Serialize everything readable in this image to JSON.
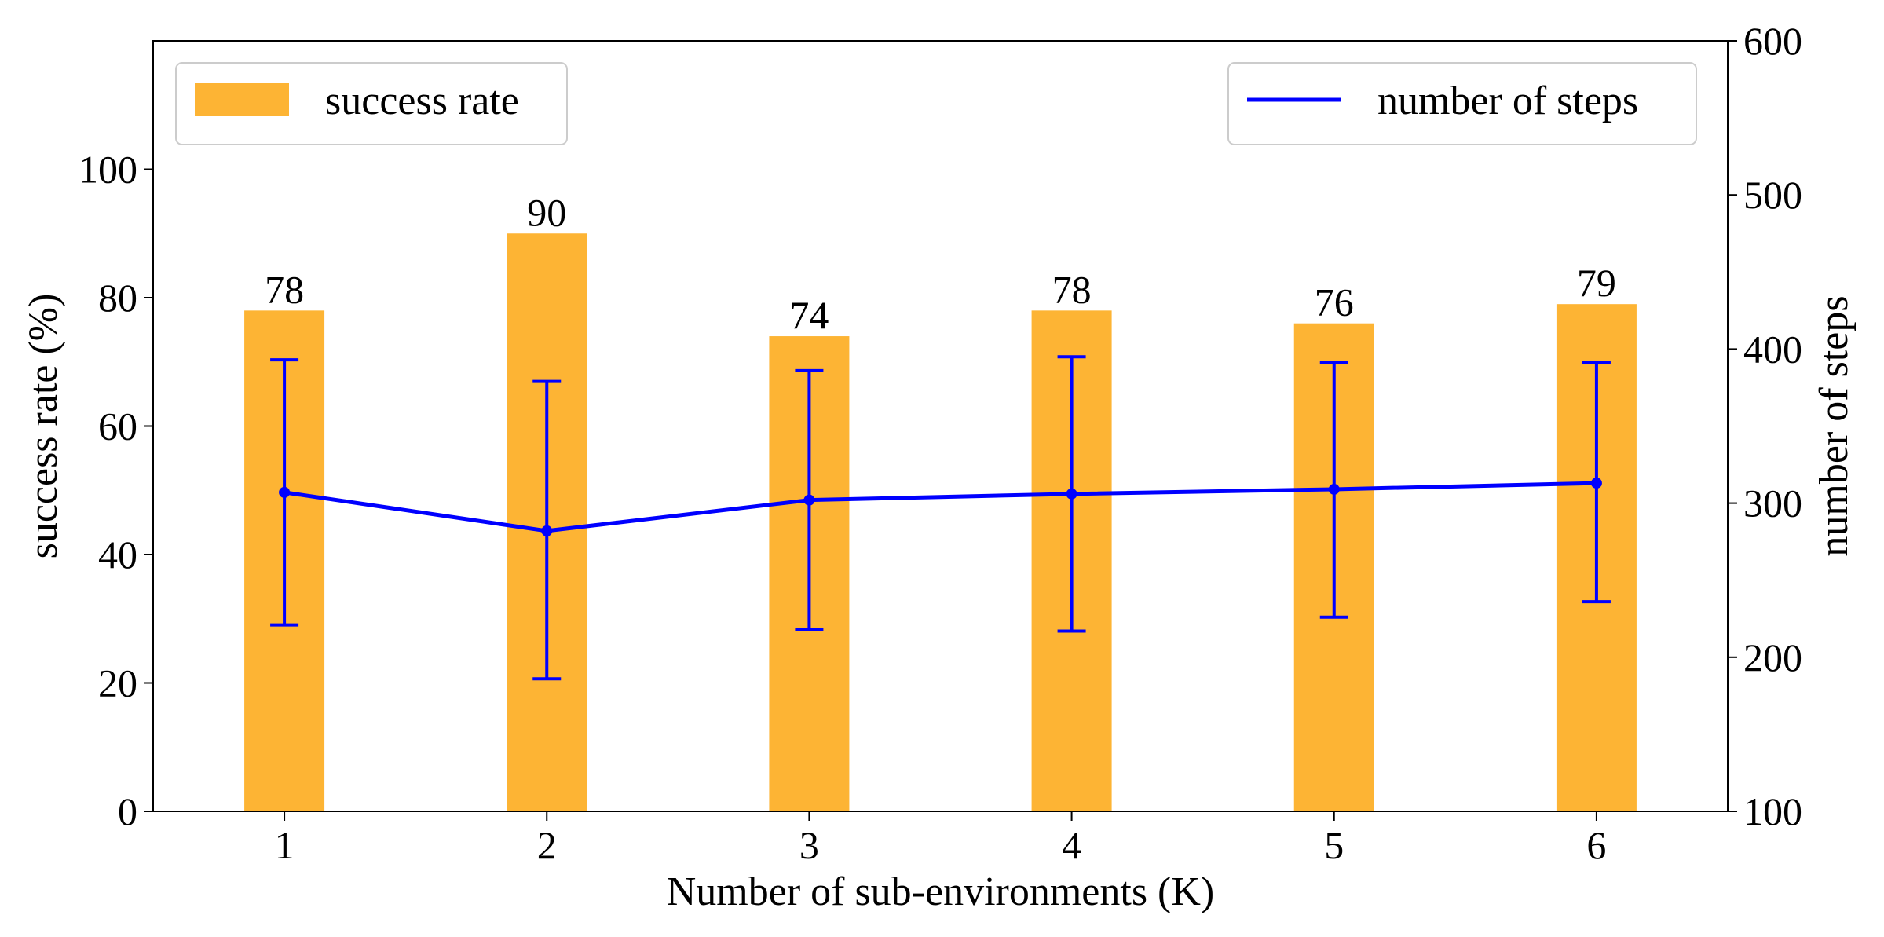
{
  "chart_data": {
    "type": "bar+line",
    "categories": [
      "1",
      "2",
      "3",
      "4",
      "5",
      "6"
    ],
    "bars": {
      "name": "success rate",
      "values": [
        78,
        90,
        74,
        78,
        76,
        79
      ],
      "labels": [
        "78",
        "90",
        "74",
        "78",
        "76",
        "79"
      ],
      "color": "#FDB434"
    },
    "line": {
      "name": "number of steps",
      "values": [
        307,
        282,
        302,
        306,
        309,
        313
      ],
      "err_low": [
        221,
        186,
        218,
        217,
        226,
        236
      ],
      "err_high": [
        393,
        379,
        386,
        395,
        391,
        391
      ],
      "color": "#0000FF"
    },
    "xlabel": "Number of sub-environments (K)",
    "ylabel_left": "success rate (%)",
    "ylabel_right": "number of steps",
    "ylim_left": [
      0,
      120
    ],
    "ylim_right": [
      100,
      600
    ],
    "yticks_left": [
      "0",
      "20",
      "40",
      "60",
      "80",
      "100"
    ],
    "yticks_right": [
      "100",
      "200",
      "300",
      "400",
      "500",
      "600"
    ],
    "legend_left_position": "top-left",
    "legend_right_position": "top-right",
    "grid": false
  }
}
